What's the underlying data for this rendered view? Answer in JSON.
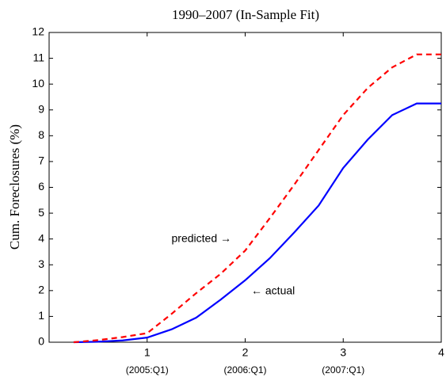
{
  "chart_data": {
    "type": "line",
    "title": "1990–2007 (In-Sample Fit)",
    "y_label": "Cum. Foreclosures (%)",
    "x": [
      0.25,
      0.5,
      0.75,
      1.0,
      1.25,
      1.5,
      1.75,
      2.0,
      2.25,
      2.5,
      2.75,
      3.0,
      3.25,
      3.5,
      3.75,
      4.0
    ],
    "series": [
      {
        "name": "actual",
        "color": "#0000ff",
        "dash": "solid",
        "values": [
          0,
          0.02,
          0.07,
          0.18,
          0.5,
          0.95,
          1.65,
          2.4,
          3.25,
          4.25,
          5.3,
          6.75,
          7.85,
          8.8,
          9.25,
          9.25
        ]
      },
      {
        "name": "predicted",
        "color": "#ff0000",
        "dash": "dashed",
        "values": [
          0,
          0.08,
          0.2,
          0.35,
          1.1,
          1.9,
          2.65,
          3.55,
          4.8,
          6.1,
          7.45,
          8.8,
          9.85,
          10.65,
          11.15,
          11.15
        ]
      }
    ],
    "annotations": [
      "predicted →",
      "← actual"
    ],
    "xlim": [
      0,
      4
    ],
    "xticks": [
      1,
      2,
      3,
      4
    ],
    "xtick_sublabels": [
      "(2005:Q1)",
      "(2006:Q1)",
      "(2007:Q1)"
    ],
    "ylim": [
      0,
      12
    ],
    "yticks": [
      0,
      1,
      2,
      3,
      4,
      5,
      6,
      7,
      8,
      9,
      10,
      11,
      12
    ],
    "grid": false
  }
}
